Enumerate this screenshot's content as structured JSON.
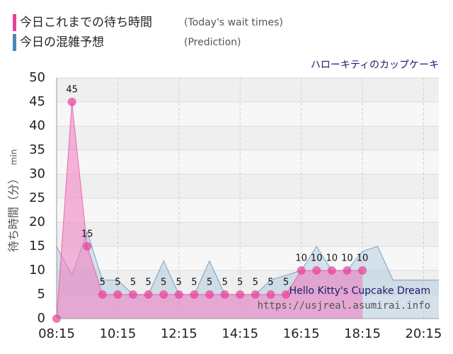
{
  "chart_data": {
    "type": "area",
    "title": "ハローキティのカップケーキ",
    "watermark": "Hello Kitty's Cupcake Dream",
    "url": "https://usjreal.asumirai.info",
    "y_label": "待ち時間（分）",
    "y_unit": "min",
    "xlim": [
      495,
      1245
    ],
    "xticks": [
      {
        "value": 495,
        "label": "08:15"
      },
      {
        "value": 615,
        "label": "10:15"
      },
      {
        "value": 735,
        "label": "12:15"
      },
      {
        "value": 855,
        "label": "14:15"
      },
      {
        "value": 975,
        "label": "16:15"
      },
      {
        "value": 1095,
        "label": "18:15"
      },
      {
        "value": 1215,
        "label": "20:15"
      }
    ],
    "ylim": [
      0,
      50
    ],
    "yticks": [
      0,
      5,
      10,
      15,
      20,
      25,
      30,
      35,
      40,
      45,
      50
    ],
    "grid": true,
    "series": [
      {
        "name": "今日の混雑予想",
        "note": "(Prediction)",
        "color": "#4f86b5",
        "fill": "#a9c3da",
        "style": "area",
        "x": [
          495,
          525,
          555,
          585,
          615,
          645,
          675,
          705,
          735,
          765,
          795,
          825,
          855,
          885,
          915,
          945,
          975,
          1005,
          1035,
          1065,
          1095,
          1125,
          1155,
          1185,
          1215,
          1245
        ],
        "values": [
          15,
          9,
          18,
          8,
          8,
          5,
          5,
          12,
          5,
          5,
          12,
          5,
          5,
          5,
          8,
          9,
          10,
          15,
          10,
          10,
          14,
          15,
          8,
          8,
          8,
          8
        ]
      },
      {
        "name": "今日これまでの待ち時間",
        "note": "(Today's wait times)",
        "color": "#e8409a",
        "fill": "#f07ac0",
        "style": "area-points",
        "x": [
          495,
          525,
          555,
          585,
          615,
          645,
          675,
          705,
          735,
          765,
          795,
          825,
          855,
          885,
          915,
          945,
          975,
          1005,
          1035,
          1065,
          1095
        ],
        "values": [
          0,
          45,
          15,
          5,
          5,
          5,
          5,
          5,
          5,
          5,
          5,
          5,
          5,
          5,
          5,
          5,
          10,
          10,
          10,
          10,
          10
        ]
      }
    ]
  }
}
